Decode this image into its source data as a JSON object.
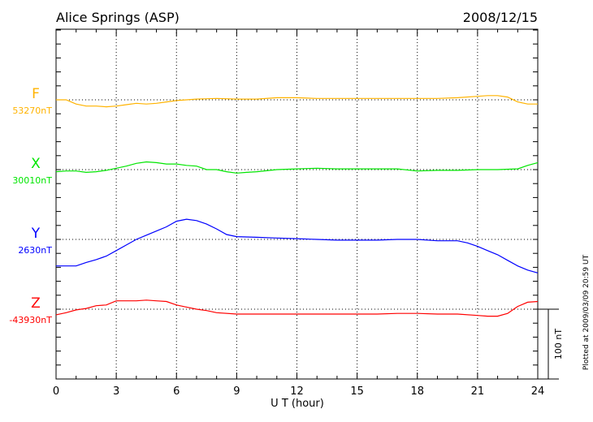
{
  "chart_data": {
    "type": "line",
    "title": "Alice Springs (ASP)",
    "date": "2008/12/15",
    "xlabel": "U T (hour)",
    "xlim": [
      0,
      24
    ],
    "xticks": [
      "0",
      "3",
      "6",
      "9",
      "12",
      "15",
      "18",
      "21",
      "24"
    ],
    "scale_bar_label": "100 nT",
    "footer": "Plotted at 2009/03/09 20:59 UT",
    "grid": true,
    "series": [
      {
        "name": "F",
        "baseline_label": "53270nT",
        "color": "#FFB300",
        "x": [
          0,
          0.5,
          1,
          1.5,
          2,
          2.5,
          3,
          3.5,
          4,
          4.5,
          5,
          5.5,
          6,
          6.5,
          7,
          8,
          9,
          10,
          11,
          12,
          13,
          14,
          15,
          16,
          17,
          18,
          19,
          20,
          21,
          21.5,
          22,
          22.5,
          23,
          23.5,
          24
        ],
        "y": [
          0,
          0,
          -6,
          -9,
          -9,
          -10,
          -9,
          -7,
          -5,
          -6,
          -5,
          -3,
          -1,
          0,
          1,
          2,
          1,
          1,
          3,
          3,
          2,
          2,
          2,
          2,
          2,
          2,
          2,
          3,
          5,
          6,
          6,
          4,
          -3,
          -6,
          -6
        ]
      },
      {
        "name": "X",
        "baseline_label": "30010nT",
        "color": "#00E600",
        "x": [
          0,
          0.5,
          1,
          1.5,
          2,
          2.5,
          3,
          3.5,
          4,
          4.5,
          5,
          5.5,
          6,
          6.5,
          7,
          7.5,
          8,
          8.5,
          9,
          9.5,
          10,
          11,
          12,
          13,
          14,
          15,
          16,
          17,
          18,
          19,
          20,
          21,
          22,
          23,
          23.5,
          24
        ],
        "y": [
          -3,
          -2,
          -2,
          -4,
          -3,
          -1,
          2,
          5,
          9,
          11,
          10,
          8,
          8,
          6,
          5,
          0,
          0,
          -3,
          -5,
          -4,
          -3,
          0,
          1,
          2,
          1,
          1,
          1,
          1,
          -2,
          -1,
          -1,
          0,
          0,
          1,
          6,
          10
        ]
      },
      {
        "name": "Y",
        "baseline_label": "2630nT",
        "color": "#0000FF",
        "x": [
          0,
          1,
          1.5,
          2,
          2.5,
          3,
          3.5,
          4,
          4.5,
          5,
          5.5,
          6,
          6.5,
          7,
          7.5,
          8,
          8.5,
          9,
          10,
          11,
          12,
          13,
          14,
          15,
          16,
          17,
          18,
          19,
          20,
          20.5,
          21,
          21.5,
          22,
          22.5,
          23,
          23.5,
          24
        ],
        "y": [
          -38,
          -38,
          -33,
          -29,
          -24,
          -16,
          -8,
          0,
          6,
          12,
          18,
          26,
          29,
          27,
          22,
          15,
          7,
          4,
          3,
          2,
          1,
          0,
          -1,
          -1,
          -1,
          0,
          0,
          -2,
          -2,
          -5,
          -10,
          -16,
          -22,
          -30,
          -38,
          -44,
          -48
        ]
      },
      {
        "name": "Z",
        "baseline_label": "-43930nT",
        "color": "#FF0000",
        "x": [
          0,
          0.5,
          1,
          1.5,
          2,
          2.5,
          3,
          3.5,
          4,
          4.5,
          5,
          5.5,
          6,
          6.5,
          7,
          7.5,
          8,
          9,
          10,
          11,
          12,
          13,
          14,
          15,
          16,
          17,
          18,
          19,
          20,
          21,
          21.5,
          22,
          22.5,
          23,
          23.5,
          24
        ],
        "y": [
          -8,
          -5,
          -1,
          1,
          5,
          6,
          12,
          12,
          12,
          13,
          12,
          11,
          6,
          3,
          0,
          -2,
          -5,
          -7,
          -7,
          -7,
          -7,
          -7,
          -7,
          -7,
          -7,
          -6,
          -6,
          -7,
          -7,
          -9,
          -10,
          -10,
          -6,
          4,
          10,
          11
        ]
      }
    ]
  }
}
